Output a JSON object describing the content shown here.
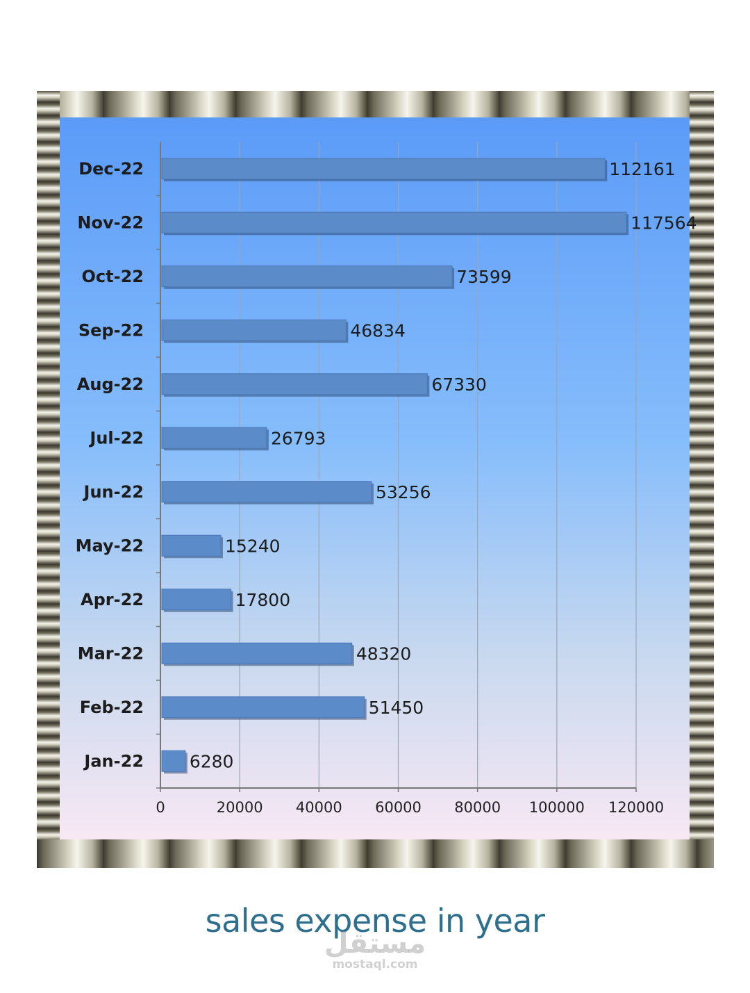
{
  "chart_data": {
    "type": "bar",
    "orientation": "horizontal",
    "title": "sales expense in year",
    "categories": [
      "Dec-22",
      "Nov-22",
      "Oct-22",
      "Sep-22",
      "Aug-22",
      "Jul-22",
      "Jun-22",
      "May-22",
      "Apr-22",
      "Mar-22",
      "Feb-22",
      "Jan-22"
    ],
    "values": [
      112161,
      117564,
      73599,
      46834,
      67330,
      26793,
      53256,
      15240,
      17800,
      48320,
      51450,
      6280
    ],
    "xlim": [
      0,
      120000
    ],
    "xticks": [
      "0",
      "20000",
      "40000",
      "60000",
      "80000",
      "100000",
      "120000"
    ],
    "data_labels": true,
    "grid": "vertical",
    "bar_color": "#5b8bc9"
  },
  "watermark": {
    "main": "مستقل",
    "sub": "mostaql.com"
  }
}
